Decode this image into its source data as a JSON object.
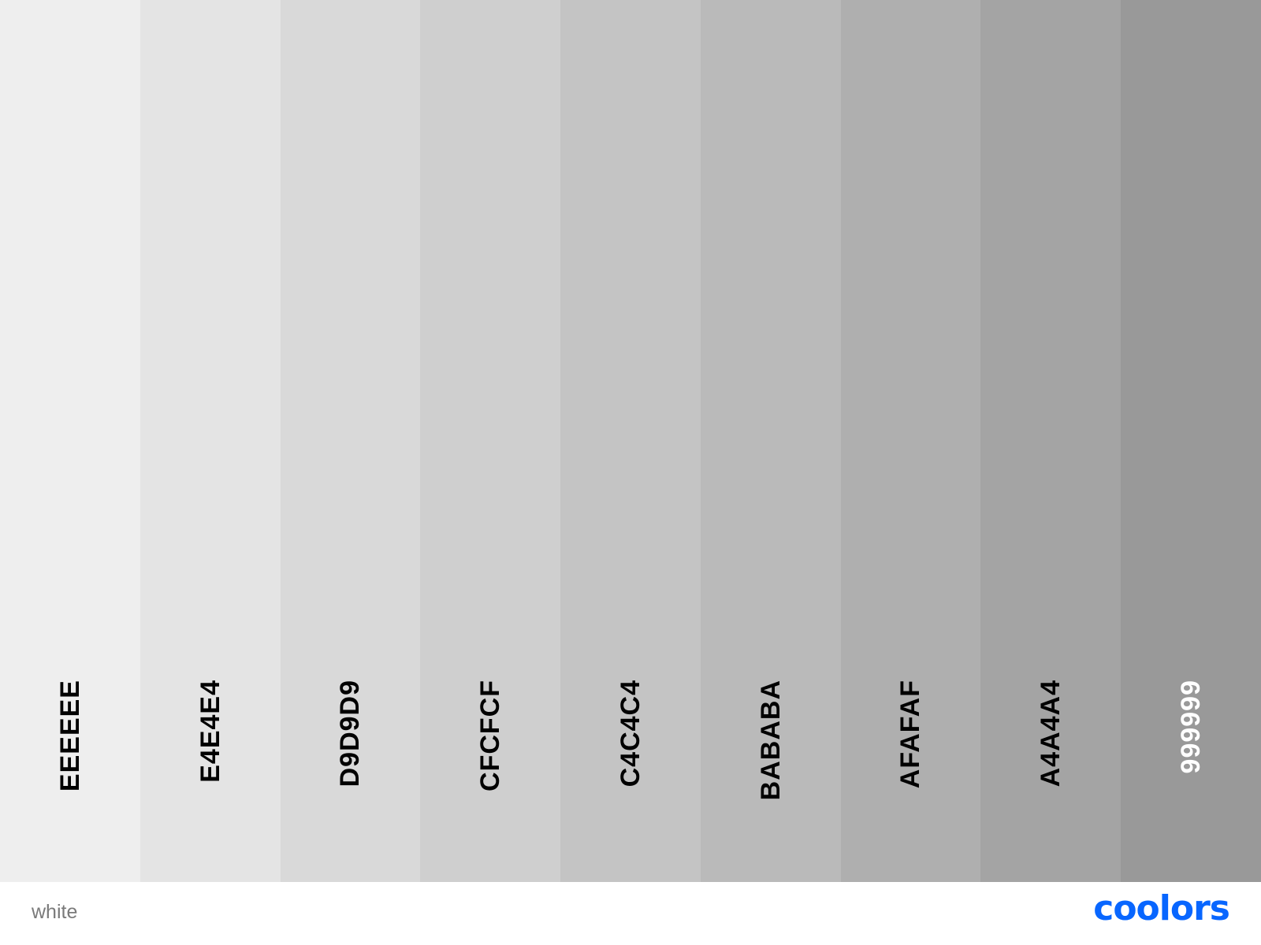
{
  "palette": {
    "name": "white",
    "swatches": [
      {
        "hex": "EEEEEE",
        "color": "#eeeeee",
        "text_color": "#000000"
      },
      {
        "hex": "E4E4E4",
        "color": "#e4e4e4",
        "text_color": "#000000"
      },
      {
        "hex": "D9D9D9",
        "color": "#d9d9d9",
        "text_color": "#000000"
      },
      {
        "hex": "CFCFCF",
        "color": "#cfcfcf",
        "text_color": "#000000"
      },
      {
        "hex": "C4C4C4",
        "color": "#c4c4c4",
        "text_color": "#000000"
      },
      {
        "hex": "BABABA",
        "color": "#bababa",
        "text_color": "#000000"
      },
      {
        "hex": "AFAFAF",
        "color": "#afafaf",
        "text_color": "#000000"
      },
      {
        "hex": "A4A4A4",
        "color": "#a4a4a4",
        "text_color": "#000000"
      },
      {
        "hex": "999999",
        "color": "#999999",
        "text_color": "#ffffff"
      }
    ]
  },
  "brand": {
    "logo_text": "coolors",
    "color": "#0866ff"
  }
}
